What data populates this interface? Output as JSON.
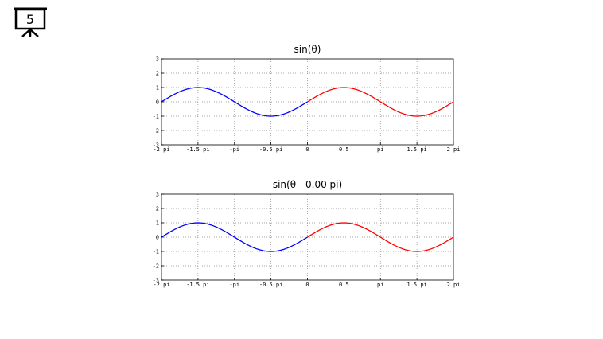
{
  "presenter": {
    "slide_number": "5"
  },
  "colors": {
    "left_series": "#0000ff",
    "right_series": "#ff0000",
    "grid": "#888888",
    "axes": "#000000"
  },
  "chart_data": [
    {
      "type": "line",
      "title": "sin(θ)",
      "phase_shift_pi": 0.0,
      "xlabel": "",
      "ylabel": "",
      "xlim": [
        -2,
        2
      ],
      "ylim": [
        -3,
        3
      ],
      "x_units": "pi",
      "xticks": [
        -2,
        -1.5,
        -1,
        -0.5,
        0,
        0.5,
        1,
        1.5,
        2
      ],
      "xtick_labels": [
        "-2 pi",
        "-1.5 pi",
        "-pi",
        "-0.5 pi",
        "0",
        "0.5",
        "pi",
        "1.5 pi",
        "2 pi"
      ],
      "yticks": [
        -3,
        -2,
        -1,
        0,
        1,
        2,
        3
      ],
      "ytick_labels": [
        "-3",
        "-2",
        "-1",
        "0",
        "1",
        "2",
        "3"
      ],
      "grid": true,
      "series": [
        {
          "x_range": [
            -2,
            0
          ],
          "function": "sin",
          "color": "#0000ff"
        },
        {
          "x_range": [
            0,
            2
          ],
          "function": "sin",
          "color": "#ff0000"
        }
      ]
    },
    {
      "type": "line",
      "title": "sin(θ - 0.00 pi)",
      "phase_shift_pi": 0.0,
      "xlabel": "",
      "ylabel": "",
      "xlim": [
        -2,
        2
      ],
      "ylim": [
        -3,
        3
      ],
      "x_units": "pi",
      "xticks": [
        -2,
        -1.5,
        -1,
        -0.5,
        0,
        0.5,
        1,
        1.5,
        2
      ],
      "xtick_labels": [
        "-2 pi",
        "-1.5 pi",
        "-pi",
        "-0.5 pi",
        "0",
        "0.5",
        "pi",
        "1.5 pi",
        "2 pi"
      ],
      "yticks": [
        -3,
        -2,
        -1,
        0,
        1,
        2,
        3
      ],
      "ytick_labels": [
        "-3",
        "-2",
        "-1",
        "0",
        "1",
        "2",
        "3"
      ],
      "grid": true,
      "series": [
        {
          "x_range": [
            -2,
            0
          ],
          "function": "sin",
          "color": "#0000ff"
        },
        {
          "x_range": [
            0,
            2
          ],
          "function": "sin",
          "color": "#ff0000"
        }
      ]
    }
  ]
}
